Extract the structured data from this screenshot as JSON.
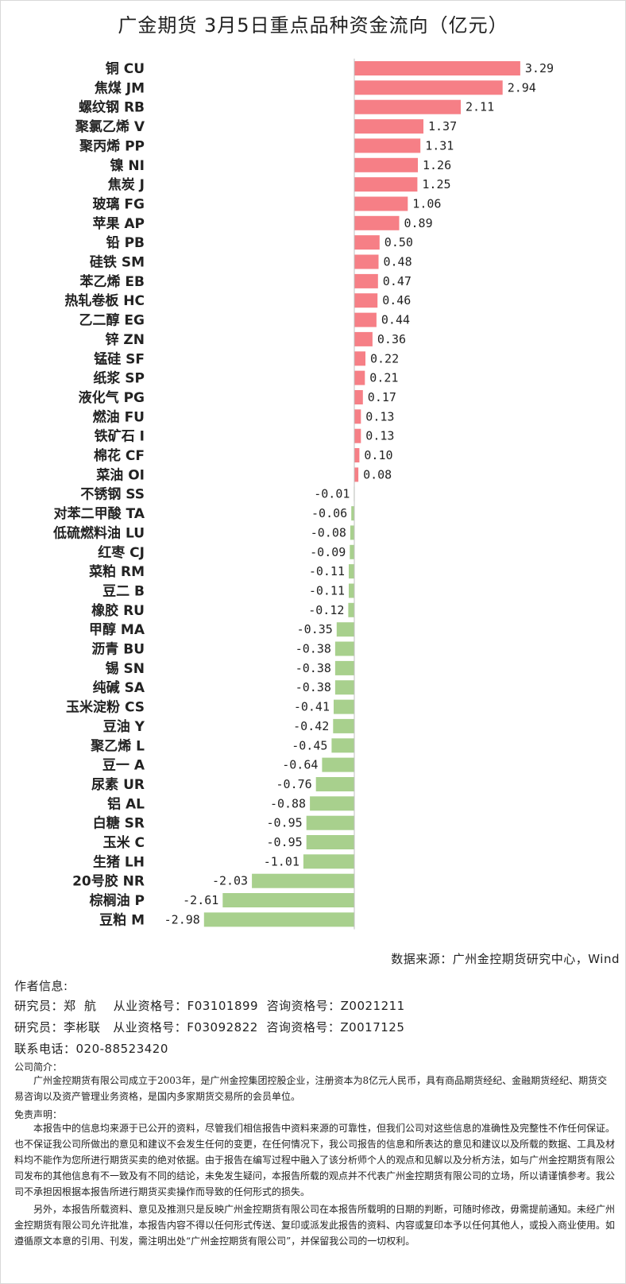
{
  "title": "广金期货 3月5日重点品种资金流向（亿元）",
  "chart_data": {
    "type": "bar",
    "orientation": "horizontal",
    "title": "广金期货 3月5日重点品种资金流向（亿元）",
    "categories": [
      "铜 CU",
      "焦煤 JM",
      "螺纹钢 RB",
      "聚氯乙烯 V",
      "聚丙烯 PP",
      "镍 NI",
      "焦炭 J",
      "玻璃 FG",
      "苹果 AP",
      "铅 PB",
      "硅铁 SM",
      "苯乙烯 EB",
      "热轧卷板 HC",
      "乙二醇 EG",
      "锌 ZN",
      "锰硅 SF",
      "纸浆 SP",
      "液化气 PG",
      "燃油 FU",
      "铁矿石 I",
      "棉花 CF",
      "菜油 OI",
      "不锈钢 SS",
      "对苯二甲酸 TA",
      "低硫燃料油 LU",
      "红枣 CJ",
      "菜粕 RM",
      "豆二 B",
      "橡胶 RU",
      "甲醇 MA",
      "沥青 BU",
      "锡 SN",
      "纯碱 SA",
      "玉米淀粉 CS",
      "豆油 Y",
      "聚乙烯 L",
      "豆一 A",
      "尿素 UR",
      "铝 AL",
      "白糖 SR",
      "玉米 C",
      "生猪 LH",
      "20号胶 NR",
      "棕榈油 P",
      "豆粕 M"
    ],
    "values": [
      3.29,
      2.94,
      2.11,
      1.37,
      1.31,
      1.26,
      1.25,
      1.06,
      0.89,
      0.5,
      0.48,
      0.47,
      0.46,
      0.44,
      0.36,
      0.22,
      0.21,
      0.17,
      0.13,
      0.13,
      0.1,
      0.08,
      -0.01,
      -0.06,
      -0.08,
      -0.09,
      -0.11,
      -0.11,
      -0.12,
      -0.35,
      -0.38,
      -0.38,
      -0.38,
      -0.41,
      -0.42,
      -0.45,
      -0.64,
      -0.76,
      -0.88,
      -0.95,
      -0.95,
      -1.01,
      -2.03,
      -2.61,
      -2.98
    ],
    "value_labels": [
      "3.29",
      "2.94",
      "2.11",
      "1.37",
      "1.31",
      "1.26",
      "1.25",
      "1.06",
      "0.89",
      "0.50",
      "0.48",
      "0.47",
      "0.46",
      "0.44",
      "0.36",
      "0.22",
      "0.21",
      "0.17",
      "0.13",
      "0.13",
      "0.10",
      "0.08",
      "-0.01",
      "-0.06",
      "-0.08",
      "-0.09",
      "-0.11",
      "-0.11",
      "-0.12",
      "-0.35",
      "-0.38",
      "-0.38",
      "-0.38",
      "-0.41",
      "-0.42",
      "-0.45",
      "-0.64",
      "-0.76",
      "-0.88",
      "-0.95",
      "-0.95",
      "-1.01",
      "-2.03",
      "-2.61",
      "-2.98"
    ],
    "colors": {
      "positive": "#f67f86",
      "negative": "#a8d08d"
    },
    "grid": false,
    "legend": "none"
  },
  "source": "数据来源：广州金控期货研究中心，Wind",
  "author": {
    "heading": "作者信息:",
    "line1": "研究员：郑  航    从业资格号：F03101899  咨询资格号：Z0021211",
    "line2": "研究员：李彬联   从业资格号：F03092822  咨询资格号：Z0017125",
    "phone": "联系电话：020-88523420"
  },
  "company": {
    "heading": "公司简介：",
    "text": "广州金控期货有限公司成立于2003年，是广州金控集团控股企业，注册资本为8亿元人民币，具有商品期货经纪、金融期货经纪、期货交易咨询以及资产管理业务资格，是国内多家期货交易所的会员单位。"
  },
  "disclaimer": {
    "heading": "免责声明：",
    "p1": "本报告中的信息均来源于已公开的资料，尽管我们相信报告中资料来源的可靠性，但我们公司对这些信息的准确性及完整性不作任何保证。也不保证我公司所做出的意见和建议不会发生任何的变更，在任何情况下，我公司报告的信息和所表达的意见和建议以及所载的数据、工具及材料均不能作为您所进行期货买卖的绝对依据。由于报告在编写过程中融入了该分析师个人的观点和见解以及分析方法，如与广州金控期货有限公司发布的其他信息有不一致及有不同的结论，未免发生疑问，本报告所载的观点并不代表广州金控期货有限公司的立场，所以请谨慎参考。我公司不承担因根据本报告所进行期货买卖操作而导致的任何形式的损失。",
    "p2": "另外，本报告所载资料、意见及推测只是反映广州金控期货有限公司在本报告所载明的日期的判断，可随时修改，毋需提前通知。未经广州金控期货有限公司允许批准，本报告内容不得以任何形式传送、复印或派发此报告的资料、内容或复印本予以任何其他人，或投入商业使用。如遵循原文本意的引用、刊发，需注明出处“广州金控期货有限公司”，并保留我公司的一切权利。"
  }
}
